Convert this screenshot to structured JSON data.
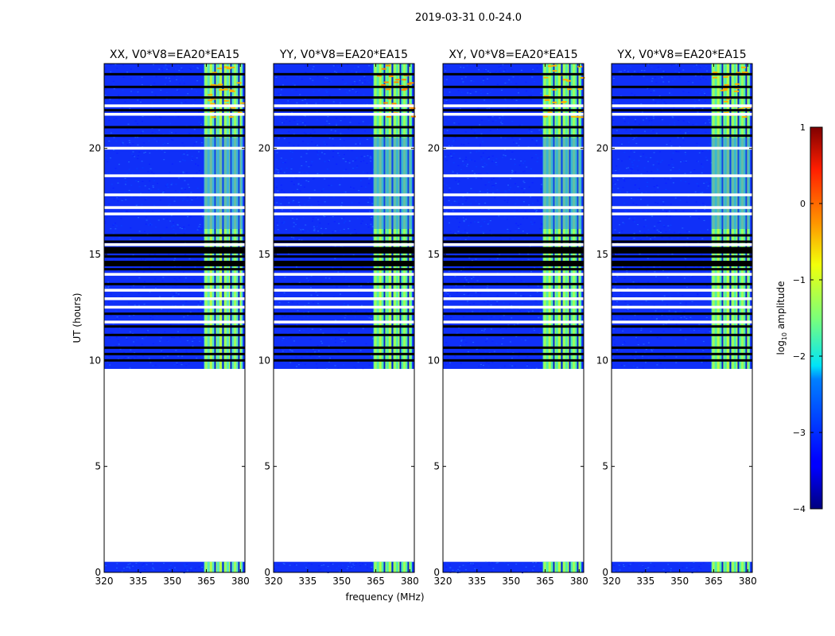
{
  "suptitle": "2019-03-31 0.0-24.0",
  "chart_data": {
    "type": "heatmap",
    "panels": [
      {
        "title": "XX, V0*V8=EA20*EA15",
        "pol": "XX"
      },
      {
        "title": "YY, V0*V8=EA20*EA15",
        "pol": "YY"
      },
      {
        "title": "XY, V0*V8=EA20*EA15",
        "pol": "XY"
      },
      {
        "title": "YX, V0*V8=EA20*EA15",
        "pol": "YX"
      }
    ],
    "xlabel": "frequency (MHz)",
    "ylabel": "UT (hours)",
    "xlim": [
      320,
      382
    ],
    "ylim": [
      0,
      24
    ],
    "xticks": [
      320,
      335,
      350,
      365,
      380
    ],
    "yticks": [
      0,
      5,
      10,
      15,
      20
    ],
    "data_time_ranges_hours": [
      [
        0.0,
        0.5
      ],
      [
        9.6,
        24.0
      ]
    ],
    "bright_band_MHz": [
      364,
      381
    ],
    "colorbar": {
      "label": "log10 amplitude",
      "range": [
        -4,
        1
      ],
      "ticks": [
        "1",
        "0",
        "−1",
        "−2",
        "−3",
        "−4"
      ],
      "colormap": "jet"
    }
  }
}
